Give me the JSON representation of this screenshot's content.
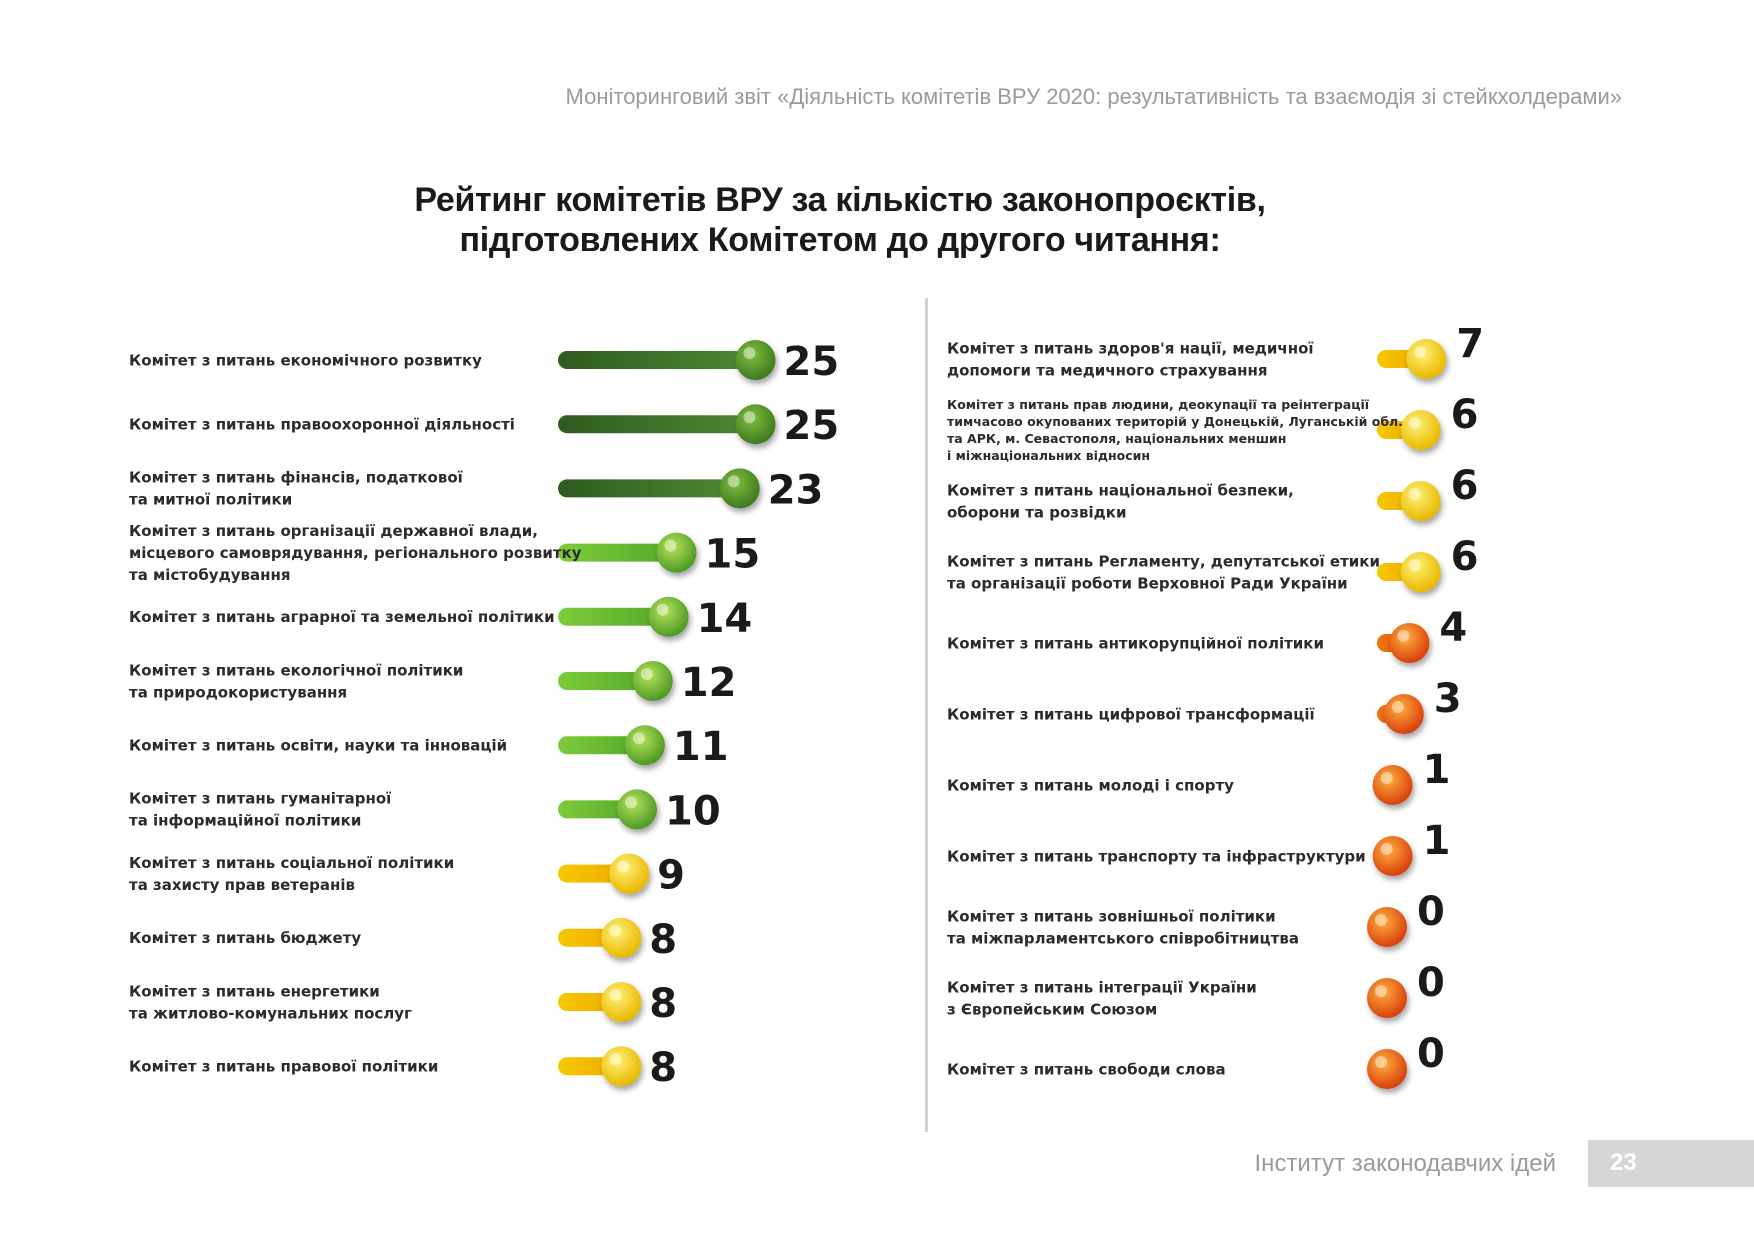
{
  "header": {
    "report_title": "Моніторинговий звіт «Діяльність комітетів ВРУ 2020: результативність та взаємодія зі стейкхолдерами»"
  },
  "footer": {
    "institute": "Інститут законодавчих ідей",
    "page_number": "23"
  },
  "colors": {
    "green_dark": "#3e6e2a",
    "green_light": "#5fae2e",
    "yellow": "#f2c200",
    "orange": "#e8501a"
  },
  "chart_data": {
    "type": "bar",
    "title": "Рейтинг комітетів ВРУ за кількістю законопроєктів, підготовлених Комітетом до другого читання:",
    "title_lines": [
      "Рейтинг комітетів ВРУ за кількістю законопроєктів,",
      "підготовлених Комітетом до другого читання:"
    ],
    "xlabel": "",
    "ylabel": "",
    "xlim": [
      0,
      25
    ],
    "grid": false,
    "columns": [
      {
        "items": [
          {
            "label_lines": [
              "Комітет з питань економічного розвитку"
            ],
            "value": 25,
            "color": "green_dark"
          },
          {
            "label_lines": [
              "Комітет з питань правоохоронної діяльності"
            ],
            "value": 25,
            "color": "green_dark"
          },
          {
            "label_lines": [
              "Комітет з питань фінансів, податкової",
              "та митної політики"
            ],
            "value": 23,
            "color": "green_dark"
          },
          {
            "label_lines": [
              "Комітет з питань організації державної влади,",
              "місцевого самоврядування, регіонального розвитку",
              "та містобудування"
            ],
            "value": 15,
            "color": "green_light"
          },
          {
            "label_lines": [
              "Комітет з питань аграрної та земельної політики"
            ],
            "value": 14,
            "color": "green_light"
          },
          {
            "label_lines": [
              "Комітет з питань екологічної політики",
              "та природокористування"
            ],
            "value": 12,
            "color": "green_light"
          },
          {
            "label_lines": [
              "Комітет з питань освіти, науки та інновацій"
            ],
            "value": 11,
            "color": "green_light"
          },
          {
            "label_lines": [
              "Комітет з питань гуманітарної",
              "та інформаційної політики"
            ],
            "value": 10,
            "color": "green_light"
          },
          {
            "label_lines": [
              "Комітет з питань соціальної політики",
              "та захисту прав ветеранів"
            ],
            "value": 9,
            "color": "yellow"
          },
          {
            "label_lines": [
              "Комітет з питань бюджету"
            ],
            "value": 8,
            "color": "yellow"
          },
          {
            "label_lines": [
              "Комітет з питань енергетики",
              "та житлово-комунальних послуг"
            ],
            "value": 8,
            "color": "yellow"
          },
          {
            "label_lines": [
              "Комітет з питань правової політики"
            ],
            "value": 8,
            "color": "yellow"
          }
        ]
      },
      {
        "items": [
          {
            "label_lines": [
              "Комітет з питань здоров'я нації, медичної",
              "допомоги та медичного страхування"
            ],
            "value": 7,
            "color": "yellow"
          },
          {
            "label_lines": [
              "Комітет з питань прав людини, деокупації та реінтеграції",
              "тимчасово окупованих територій у Донецькій, Луганській обл.",
              "та АРК, м. Севастополя, національних меншин",
              "і міжнаціональних відносин"
            ],
            "value": 6,
            "color": "yellow",
            "small": true
          },
          {
            "label_lines": [
              "Комітет з питань національної безпеки,",
              "оборони та розвідки"
            ],
            "value": 6,
            "color": "yellow"
          },
          {
            "label_lines": [
              "Комітет з питань Регламенту, депутатської етики",
              "та організації роботи Верховної Ради України"
            ],
            "value": 6,
            "color": "yellow"
          },
          {
            "label_lines": [
              "Комітет з питань антикорупційної політики"
            ],
            "value": 4,
            "color": "orange"
          },
          {
            "label_lines": [
              "Комітет з питань цифрової трансформації"
            ],
            "value": 3,
            "color": "orange"
          },
          {
            "label_lines": [
              "Комітет з питань молоді і спорту"
            ],
            "value": 1,
            "color": "orange"
          },
          {
            "label_lines": [
              "Комітет з питань транспорту та інфраструктури"
            ],
            "value": 1,
            "color": "orange"
          },
          {
            "label_lines": [
              "Комітет з питань зовнішньої політики",
              "та міжпарламентського співробітництва"
            ],
            "value": 0,
            "color": "orange"
          },
          {
            "label_lines": [
              "Комітет з питань інтеграції України",
              "з Європейським Союзом"
            ],
            "value": 0,
            "color": "orange"
          },
          {
            "label_lines": [
              "Комітет з питань свободи слова"
            ],
            "value": 0,
            "color": "orange"
          }
        ]
      }
    ]
  }
}
